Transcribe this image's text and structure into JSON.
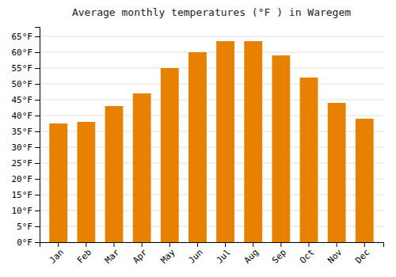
{
  "chart_data": {
    "type": "bar",
    "title": "Average monthly temperatures (°F ) in Waregem",
    "categories": [
      "Jan",
      "Feb",
      "Mar",
      "Apr",
      "May",
      "Jun",
      "Jul",
      "Aug",
      "Sep",
      "Oct",
      "Nov",
      "Dec"
    ],
    "values": [
      37.5,
      38.0,
      43.0,
      47.0,
      55.0,
      60.0,
      63.5,
      63.5,
      59.0,
      52.0,
      44.0,
      39.0
    ],
    "color": "#E88000",
    "ylim": [
      0,
      68
    ],
    "yticks": [
      {
        "value": 0,
        "label": "0°F"
      },
      {
        "value": 5,
        "label": "5°F"
      },
      {
        "value": 10,
        "label": "10°F"
      },
      {
        "value": 15,
        "label": "15°F"
      },
      {
        "value": 20,
        "label": "20°F"
      },
      {
        "value": 25,
        "label": "25°F"
      },
      {
        "value": 30,
        "label": "30°F"
      },
      {
        "value": 35,
        "label": "35°F"
      },
      {
        "value": 40,
        "label": "40°F"
      },
      {
        "value": 45,
        "label": "45°F"
      },
      {
        "value": 50,
        "label": "50°F"
      },
      {
        "value": 55,
        "label": "55°F"
      },
      {
        "value": 60,
        "label": "60°F"
      },
      {
        "value": 65,
        "label": "65°F"
      }
    ],
    "grid": true
  }
}
